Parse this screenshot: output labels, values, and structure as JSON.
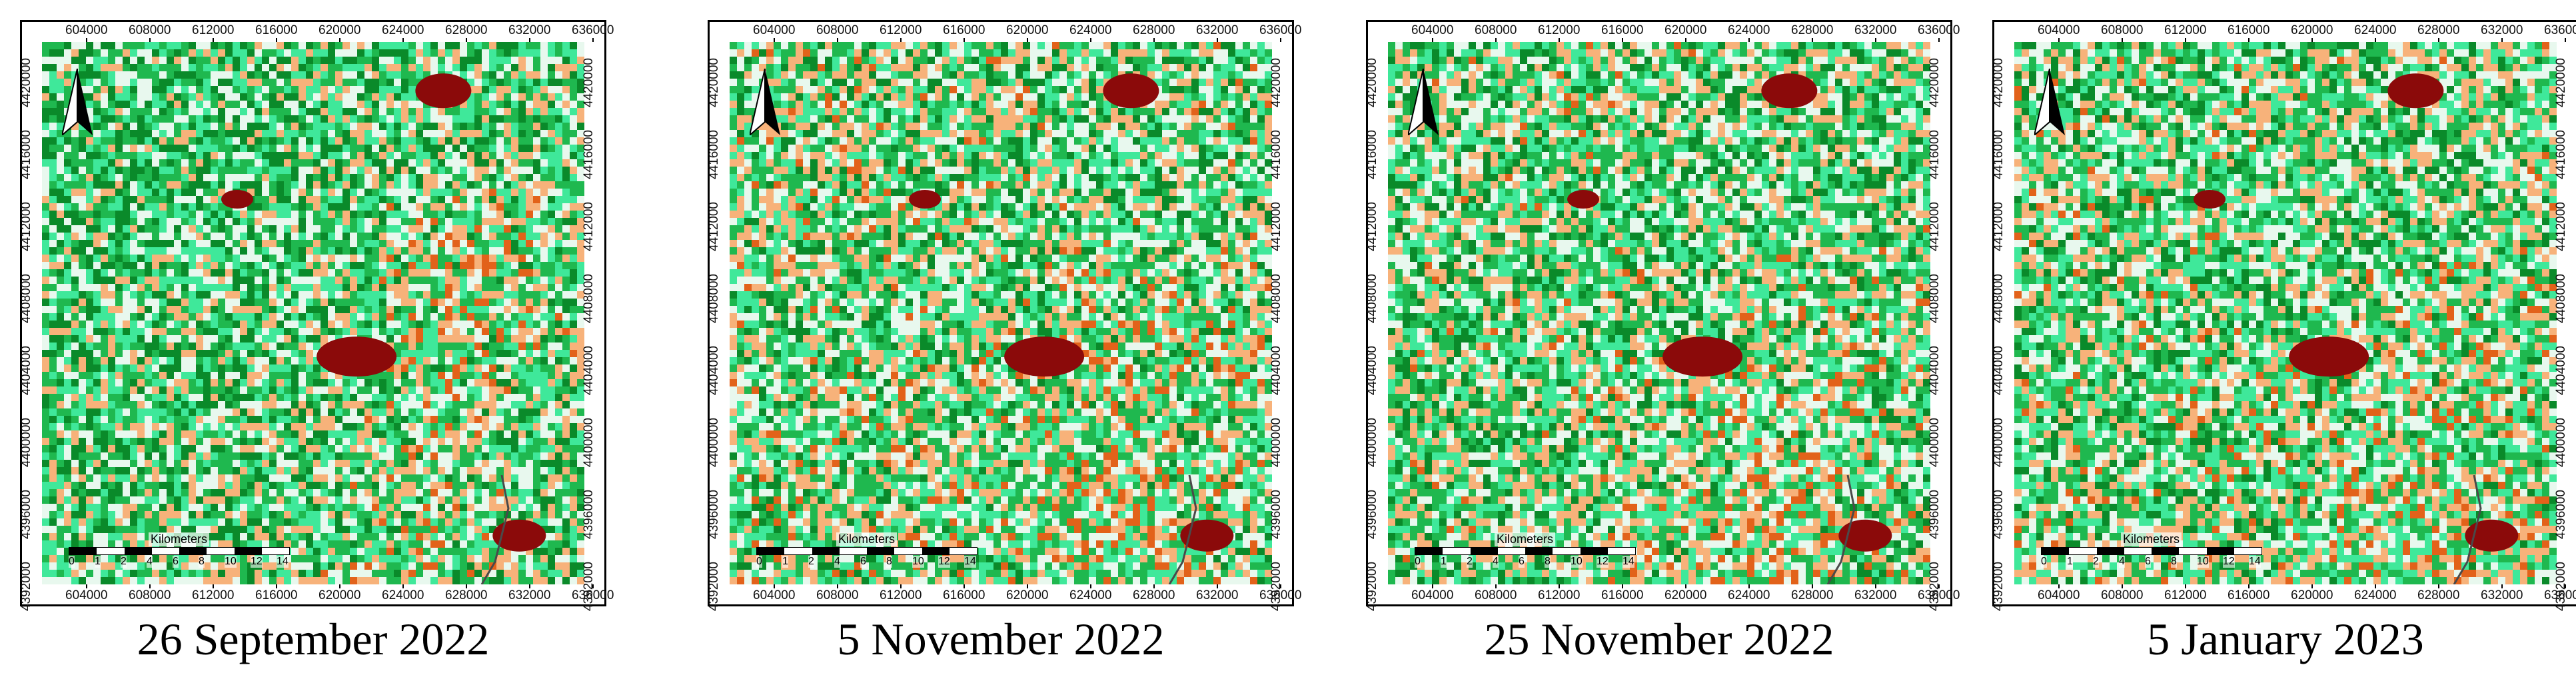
{
  "panels": [
    {
      "caption": "26 September 2022",
      "seed": 11,
      "green_bias": 0.62
    },
    {
      "caption": "5 November 2022",
      "seed": 23,
      "green_bias": 0.5
    },
    {
      "caption": "25 November 2022",
      "seed": 37,
      "green_bias": 0.54
    },
    {
      "caption": "5 January 2023",
      "seed": 53,
      "green_bias": 0.52
    }
  ],
  "x_ticks": [
    "604000",
    "608000",
    "612000",
    "616000",
    "620000",
    "624000",
    "628000",
    "632000",
    "636000"
  ],
  "y_ticks": [
    "4420000",
    "4416000",
    "4412000",
    "4408000",
    "4404000",
    "4400000",
    "4396000",
    "4392000"
  ],
  "scale": {
    "title": "Kilometers",
    "labels": [
      "0",
      "1",
      "2",
      "4",
      "6",
      "8",
      "10",
      "12",
      "14"
    ]
  },
  "north_label": "",
  "colors": {
    "dark_green": "#0a8a2a",
    "green": "#1fb84f",
    "light_green": "#3fe89a",
    "pale": "#e8f8ee",
    "light_orange": "#f7b27a",
    "orange": "#e2621a",
    "dark_red": "#8b0a0a"
  }
}
